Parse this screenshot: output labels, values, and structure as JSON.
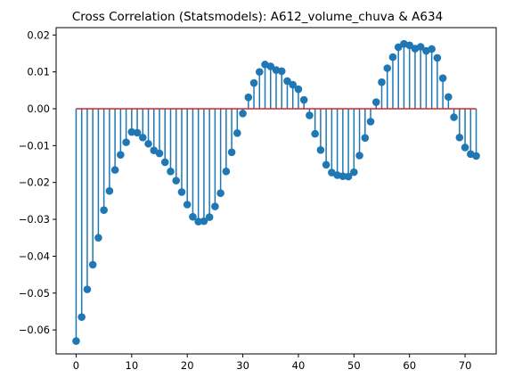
{
  "chart_data": {
    "type": "stem",
    "title": "Cross Correlation (Statsmodels): A612_volume_chuva & A634",
    "xlabel": "",
    "ylabel": "",
    "xlim": [
      -3.6,
      75.6
    ],
    "ylim": [
      -0.0665,
      0.022
    ],
    "x_ticks": [
      0,
      10,
      20,
      30,
      40,
      50,
      60,
      70
    ],
    "y_ticks": [
      -0.06,
      -0.05,
      -0.04,
      -0.03,
      -0.02,
      -0.01,
      0.0,
      0.01,
      0.02
    ],
    "y_tick_labels": [
      "−0.06",
      "−0.05",
      "−0.04",
      "−0.03",
      "−0.02",
      "−0.01",
      "0.00",
      "0.01",
      "0.02"
    ],
    "grid": false,
    "baseline": 0,
    "colors": {
      "marker": "#1f77b4",
      "stem": "#1f77b4",
      "baseline": "#d62728"
    },
    "x": [
      0,
      1,
      2,
      3,
      4,
      5,
      6,
      7,
      8,
      9,
      10,
      11,
      12,
      13,
      14,
      15,
      16,
      17,
      18,
      19,
      20,
      21,
      22,
      23,
      24,
      25,
      26,
      27,
      28,
      29,
      30,
      31,
      32,
      33,
      34,
      35,
      36,
      37,
      38,
      39,
      40,
      41,
      42,
      43,
      44,
      45,
      46,
      47,
      48,
      49,
      50,
      51,
      52,
      53,
      54,
      55,
      56,
      57,
      58,
      59,
      60,
      61,
      62,
      63,
      64,
      65,
      66,
      67,
      68,
      69,
      70,
      71,
      72
    ],
    "values": [
      -0.063,
      -0.0565,
      -0.049,
      -0.0423,
      -0.035,
      -0.0275,
      -0.0223,
      -0.0166,
      -0.0125,
      -0.0091,
      -0.0063,
      -0.0065,
      -0.0078,
      -0.0095,
      -0.0113,
      -0.0121,
      -0.0145,
      -0.017,
      -0.0195,
      -0.0226,
      -0.026,
      -0.0293,
      -0.0306,
      -0.0305,
      -0.0294,
      -0.0265,
      -0.0229,
      -0.017,
      -0.0118,
      -0.0066,
      -0.0013,
      0.0031,
      0.007,
      0.01,
      0.012,
      0.0115,
      0.0105,
      0.0102,
      0.0075,
      0.0065,
      0.0053,
      0.0024,
      -0.0018,
      -0.0068,
      -0.0112,
      -0.0152,
      -0.0173,
      -0.018,
      -0.0183,
      -0.0184,
      -0.0172,
      -0.0127,
      -0.0079,
      -0.0035,
      0.0018,
      0.0072,
      0.011,
      0.014,
      0.0167,
      0.0176,
      0.0172,
      0.0163,
      0.0168,
      0.0157,
      0.0162,
      0.0138,
      0.0083,
      0.0032,
      -0.0023,
      -0.0078,
      -0.0105,
      -0.0123,
      -0.0128
    ]
  }
}
